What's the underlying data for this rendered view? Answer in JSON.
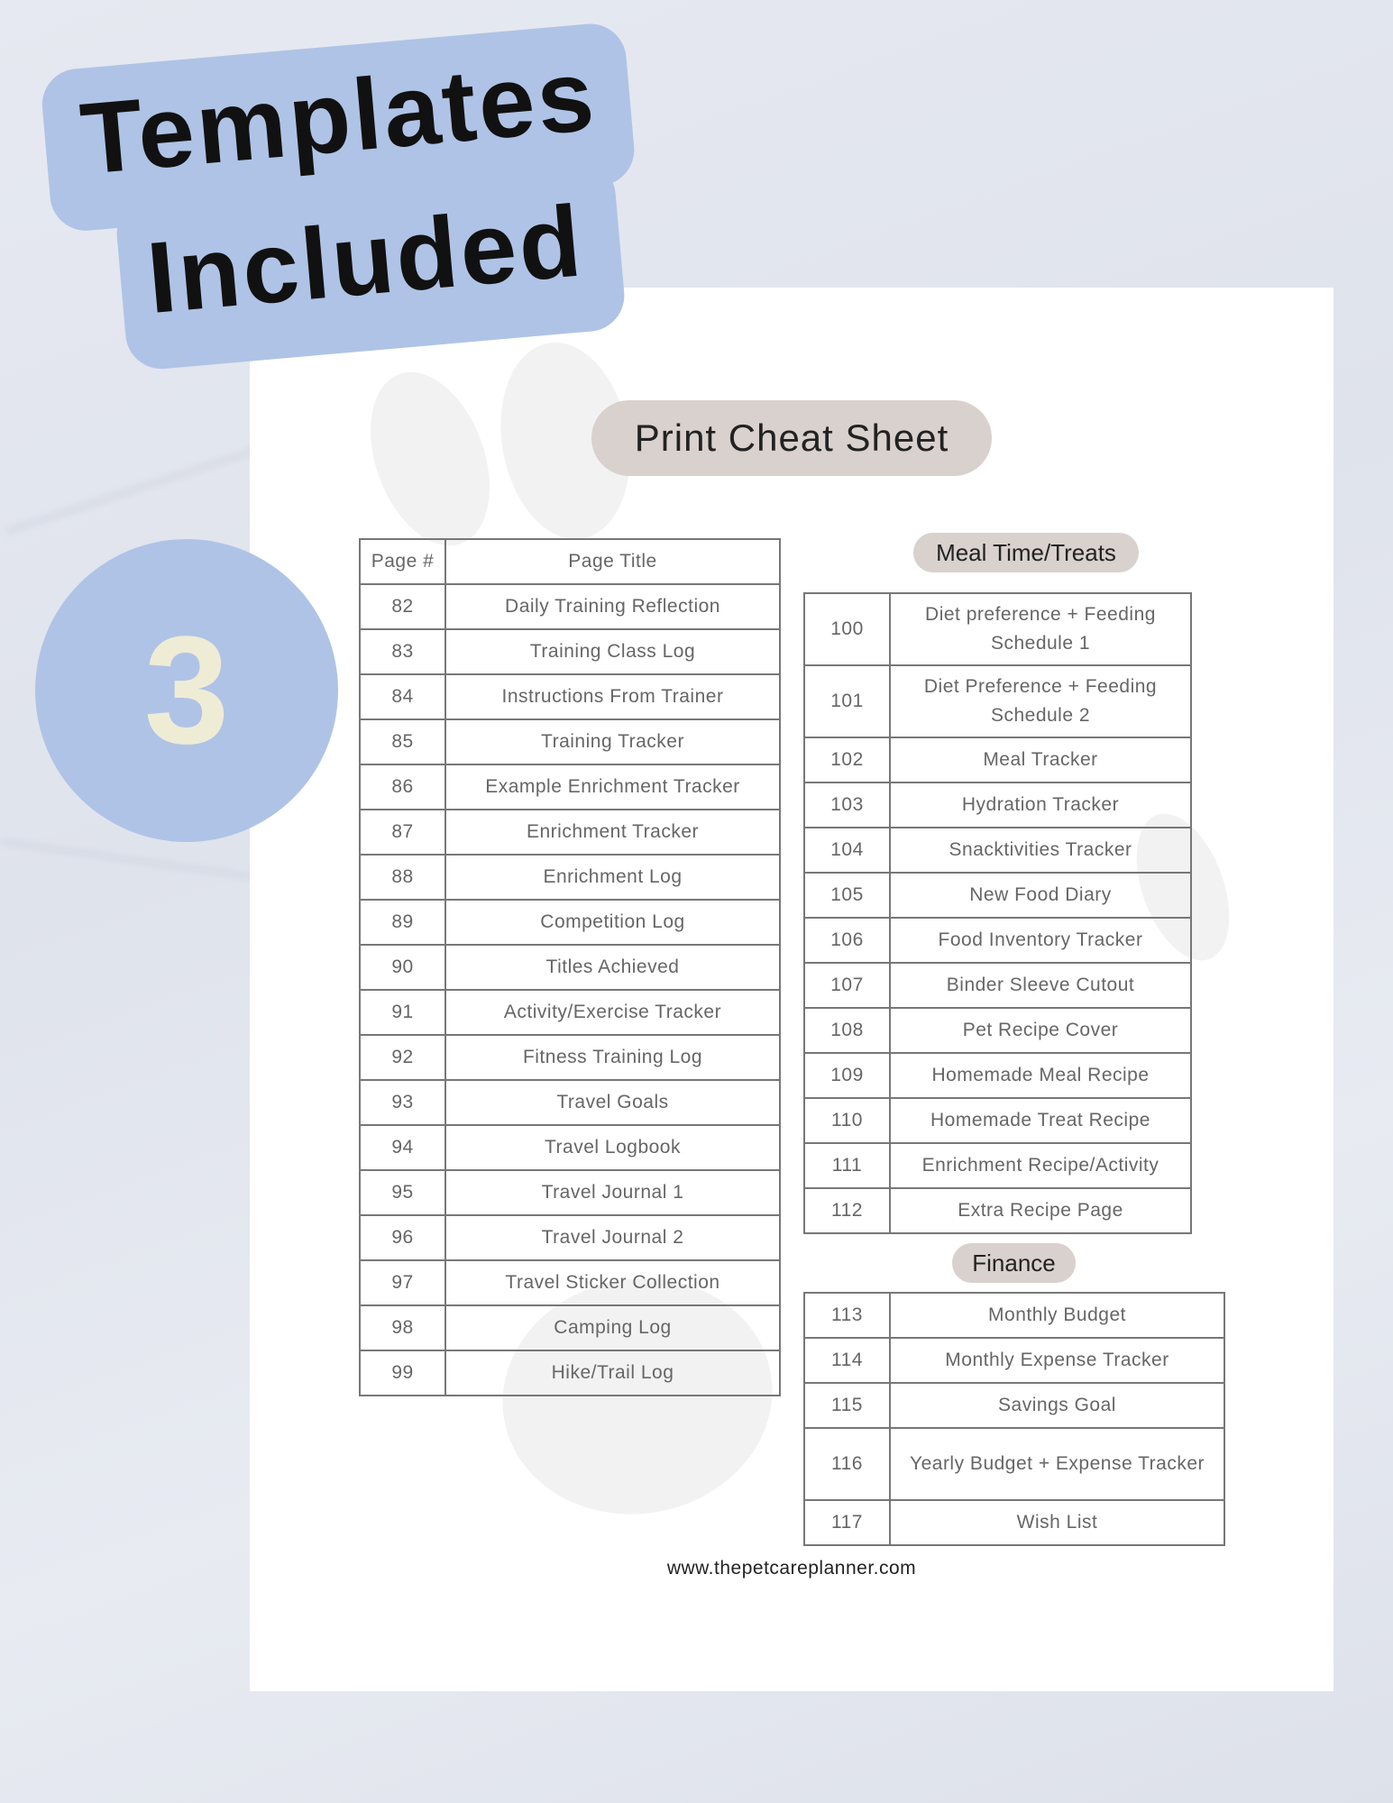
{
  "badge": {
    "line1": "Templates",
    "line2": "Included"
  },
  "step_number": "3",
  "sheet": {
    "title": "Print Cheat Sheet",
    "left_table": {
      "headers": [
        "Page #",
        "Page Title"
      ],
      "rows": [
        [
          "82",
          "Daily Training Reflection"
        ],
        [
          "83",
          "Training Class Log"
        ],
        [
          "84",
          "Instructions From Trainer"
        ],
        [
          "85",
          "Training Tracker"
        ],
        [
          "86",
          "Example Enrichment Tracker"
        ],
        [
          "87",
          "Enrichment Tracker"
        ],
        [
          "88",
          "Enrichment Log"
        ],
        [
          "89",
          "Competition Log"
        ],
        [
          "90",
          "Titles Achieved"
        ],
        [
          "91",
          "Activity/Exercise Tracker"
        ],
        [
          "92",
          "Fitness Training Log"
        ],
        [
          "93",
          "Travel Goals"
        ],
        [
          "94",
          "Travel Logbook"
        ],
        [
          "95",
          "Travel Journal 1"
        ],
        [
          "96",
          "Travel Journal 2"
        ],
        [
          "97",
          "Travel Sticker Collection"
        ],
        [
          "98",
          "Camping Log"
        ],
        [
          "99",
          "Hike/Trail Log"
        ]
      ]
    },
    "meal_section": {
      "label": "Meal Time/Treats",
      "rows": [
        [
          "100",
          "Diet preference + Feeding Schedule 1"
        ],
        [
          "101",
          "Diet Preference + Feeding Schedule 2"
        ],
        [
          "102",
          "Meal Tracker"
        ],
        [
          "103",
          "Hydration Tracker"
        ],
        [
          "104",
          "Snacktivities Tracker"
        ],
        [
          "105",
          "New Food Diary"
        ],
        [
          "106",
          "Food Inventory Tracker"
        ],
        [
          "107",
          "Binder Sleeve Cutout"
        ],
        [
          "108",
          "Pet Recipe Cover"
        ],
        [
          "109",
          "Homemade Meal Recipe"
        ],
        [
          "110",
          "Homemade Treat Recipe"
        ],
        [
          "111",
          "Enrichment Recipe/Activity"
        ],
        [
          "112",
          "Extra Recipe Page"
        ]
      ]
    },
    "finance_section": {
      "label": "Finance",
      "rows": [
        [
          "113",
          "Monthly Budget"
        ],
        [
          "114",
          "Monthly Expense Tracker"
        ],
        [
          "115",
          "Savings Goal"
        ],
        [
          "116",
          "Yearly Budget + Expense Tracker"
        ],
        [
          "117",
          "Wish List"
        ]
      ]
    },
    "url": "www.thepetcareplanner.com"
  },
  "colors": {
    "accent_blue": "#afc3e6",
    "pill": "#d8d1cd",
    "number": "#efecd6"
  }
}
